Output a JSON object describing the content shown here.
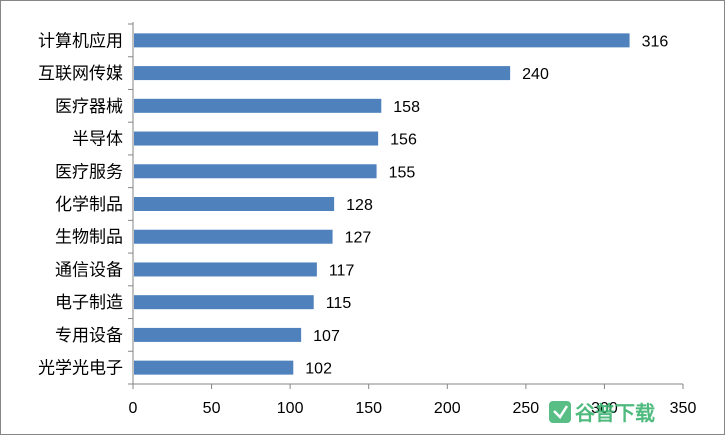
{
  "chart_data": {
    "type": "bar",
    "orientation": "horizontal",
    "categories": [
      "计算机应用",
      "互联网传媒",
      "医疗器械",
      "半导体",
      "医疗服务",
      "化学制品",
      "生物制品",
      "通信设备",
      "电子制造",
      "专用设备",
      "光学光电子"
    ],
    "values": [
      316,
      240,
      158,
      156,
      155,
      128,
      127,
      117,
      115,
      107,
      102
    ],
    "data_labels": [
      "316",
      "240",
      "158",
      "156",
      "155",
      "128",
      "127",
      "117",
      "115",
      "107",
      "102"
    ],
    "xlim": [
      0,
      350
    ],
    "xticks": [
      "0",
      "50",
      "100",
      "150",
      "200",
      "250",
      "300",
      "350"
    ],
    "title": "",
    "xlabel": "",
    "ylabel": "",
    "grid": false,
    "legend": "none",
    "bar_color": "#4f81bd"
  },
  "watermark": {
    "text": "谷普下载",
    "color": "#3cb371"
  }
}
